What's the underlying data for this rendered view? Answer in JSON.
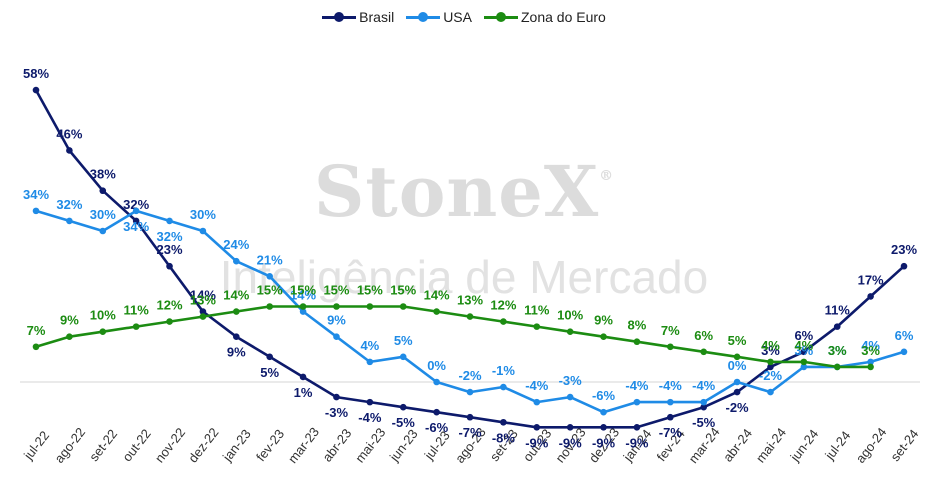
{
  "watermark": {
    "brand": "StoneX",
    "reg": "®",
    "subtitle": "Inteligência de Mercado"
  },
  "chart_data": {
    "type": "line",
    "legend_position": "top-center",
    "grid": false,
    "categories": [
      "jul-22",
      "ago-22",
      "set-22",
      "out-22",
      "nov-22",
      "dez-22",
      "jan-23",
      "fev-23",
      "mar-23",
      "abr-23",
      "mai-23",
      "jun-23",
      "jul-23",
      "ago-23",
      "set-23",
      "out-23",
      "nov-23",
      "dez-23",
      "jan-24",
      "fev-24",
      "mar-24",
      "abr-24",
      "mai-24",
      "jun-24",
      "jul-24",
      "ago-24",
      "set-24"
    ],
    "ylim": [
      -16,
      64
    ],
    "series": [
      {
        "name": "Brasil",
        "color": "#0d1a6b",
        "values": [
          58,
          46,
          38,
          32,
          23,
          14,
          9,
          5,
          1,
          -3,
          -4,
          -5,
          -6,
          -7,
          -8,
          -9,
          -9,
          -9,
          -9,
          -7,
          -5,
          -2,
          3,
          6,
          11,
          17,
          23
        ],
        "labels": [
          "58%",
          "46%",
          "38%",
          "32%",
          "23%",
          "14%",
          "9%",
          "5%",
          "1%",
          "-3%",
          "-4%",
          "-5%",
          "-6%",
          "-7%",
          "-8%",
          "-9%",
          "-9%",
          "-9%",
          "-9%",
          "-7%",
          "-5%",
          "-2%",
          "3%",
          "6%",
          "11%",
          "17%",
          "23%"
        ]
      },
      {
        "name": "USA",
        "color": "#1f8be6",
        "values": [
          34,
          32,
          30,
          34,
          32,
          30,
          24,
          21,
          14,
          9,
          4,
          5,
          0,
          -2,
          -1,
          -4,
          -3,
          -6,
          -4,
          -4,
          -4,
          0,
          -2,
          3,
          3,
          4,
          6
        ],
        "labels": [
          "34%",
          "32%",
          "30%",
          "34%",
          "32%",
          "30%",
          "24%",
          "21%",
          "14%",
          "9%",
          "4%",
          "5%",
          "0%",
          "-2%",
          "-1%",
          "-4%",
          "-3%",
          "-6%",
          "-4%",
          "-4%",
          "-4%",
          "0%",
          "-2%",
          "3%",
          "3%",
          "4%",
          "6%"
        ]
      },
      {
        "name": "Zona do Euro",
        "color": "#1c8c12",
        "values": [
          7,
          9,
          10,
          11,
          12,
          13,
          14,
          15,
          15,
          15,
          15,
          15,
          14,
          13,
          12,
          11,
          10,
          9,
          8,
          7,
          6,
          5,
          4,
          4,
          3,
          3,
          null
        ],
        "labels": [
          "7%",
          "9%",
          "10%",
          "11%",
          "12%",
          "13%",
          "14%",
          "15%",
          "15%",
          "15%",
          "15%",
          "15%",
          "14%",
          "13%",
          "12%",
          "11%",
          "10%",
          "9%",
          "8%",
          "7%",
          "6%",
          "5%",
          "4%",
          "4%",
          "3%",
          "3%",
          null
        ]
      }
    ]
  }
}
